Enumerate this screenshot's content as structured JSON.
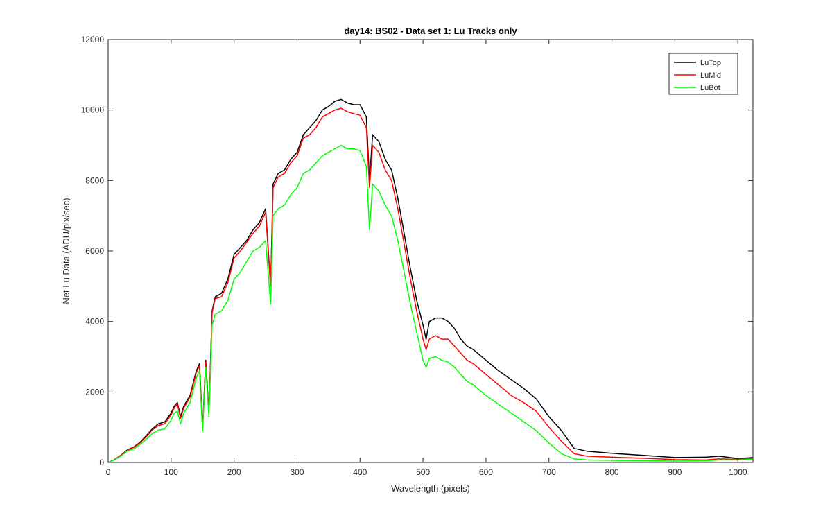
{
  "chart_data": {
    "type": "line",
    "title": "day14: BS02 - Data set 1: Lu Tracks only",
    "xlabel": "Wavelength (pixels)",
    "ylabel": "Net Lu Data (ADU/pix/sec)",
    "xlim": [
      0,
      1024
    ],
    "ylim": [
      0,
      12000
    ],
    "x_ticks": [
      0,
      100,
      200,
      300,
      400,
      500,
      600,
      700,
      800,
      900,
      1000
    ],
    "y_ticks": [
      0,
      2000,
      4000,
      6000,
      8000,
      10000,
      12000
    ],
    "grid": false,
    "legend_position": "top-right",
    "series": [
      {
        "name": "LuTop",
        "color": "#000000",
        "x": [
          0,
          10,
          20,
          30,
          40,
          50,
          60,
          70,
          80,
          90,
          100,
          105,
          110,
          115,
          120,
          130,
          140,
          145,
          150,
          155,
          160,
          165,
          170,
          180,
          190,
          200,
          210,
          220,
          230,
          240,
          250,
          258,
          262,
          270,
          280,
          290,
          300,
          310,
          320,
          330,
          340,
          350,
          360,
          370,
          380,
          390,
          400,
          410,
          415,
          420,
          430,
          440,
          450,
          460,
          470,
          480,
          490,
          500,
          505,
          510,
          520,
          530,
          540,
          550,
          560,
          570,
          580,
          600,
          620,
          640,
          660,
          680,
          700,
          720,
          740,
          760,
          800,
          850,
          900,
          950,
          970,
          1000,
          1024
        ],
        "y": [
          0,
          80,
          200,
          350,
          430,
          560,
          750,
          950,
          1100,
          1150,
          1400,
          1600,
          1700,
          1300,
          1600,
          1900,
          2600,
          2800,
          1000,
          2900,
          1400,
          4300,
          4700,
          4800,
          5200,
          5900,
          6100,
          6300,
          6600,
          6800,
          7200,
          5000,
          7900,
          8200,
          8300,
          8600,
          8800,
          9300,
          9500,
          9700,
          10000,
          10100,
          10250,
          10300,
          10200,
          10150,
          10150,
          9800,
          8000,
          9300,
          9100,
          8600,
          8300,
          7500,
          6500,
          5500,
          4600,
          3900,
          3500,
          4000,
          4100,
          4100,
          4000,
          3800,
          3500,
          3300,
          3200,
          2900,
          2600,
          2350,
          2100,
          1800,
          1300,
          900,
          400,
          320,
          260,
          200,
          140,
          150,
          180,
          110,
          140
        ]
      },
      {
        "name": "LuMid",
        "color": "#ff0000",
        "x": [
          0,
          10,
          20,
          30,
          40,
          50,
          60,
          70,
          80,
          90,
          100,
          105,
          110,
          115,
          120,
          130,
          140,
          145,
          150,
          155,
          160,
          165,
          170,
          180,
          190,
          200,
          210,
          220,
          230,
          240,
          250,
          258,
          262,
          270,
          280,
          290,
          300,
          310,
          320,
          330,
          340,
          350,
          360,
          370,
          380,
          390,
          400,
          410,
          415,
          420,
          430,
          440,
          450,
          460,
          470,
          480,
          490,
          500,
          505,
          510,
          520,
          530,
          540,
          550,
          560,
          570,
          580,
          600,
          620,
          640,
          660,
          680,
          700,
          720,
          740,
          760,
          800,
          850,
          900,
          950,
          970,
          1000,
          1024
        ],
        "y": [
          0,
          80,
          200,
          340,
          420,
          540,
          720,
          920,
          1050,
          1100,
          1350,
          1550,
          1650,
          1250,
          1550,
          1850,
          2550,
          2750,
          950,
          2850,
          1350,
          4250,
          4650,
          4700,
          5100,
          5800,
          6000,
          6250,
          6500,
          6700,
          7100,
          5000,
          7800,
          8100,
          8200,
          8500,
          8700,
          9200,
          9300,
          9500,
          9800,
          9900,
          10000,
          10050,
          9950,
          9900,
          9850,
          9500,
          7800,
          9000,
          8800,
          8300,
          8000,
          7200,
          6200,
          5200,
          4300,
          3500,
          3200,
          3500,
          3600,
          3500,
          3500,
          3300,
          3100,
          2900,
          2800,
          2500,
          2200,
          1900,
          1700,
          1450,
          1000,
          600,
          250,
          180,
          150,
          120,
          80,
          70,
          100,
          90,
          110
        ]
      },
      {
        "name": "LuBot",
        "color": "#00ff00",
        "x": [
          0,
          10,
          20,
          30,
          40,
          50,
          60,
          70,
          80,
          90,
          100,
          105,
          110,
          115,
          120,
          130,
          140,
          145,
          150,
          155,
          160,
          165,
          170,
          180,
          190,
          200,
          210,
          220,
          230,
          240,
          250,
          258,
          262,
          270,
          280,
          290,
          300,
          310,
          320,
          330,
          340,
          350,
          360,
          370,
          380,
          390,
          400,
          410,
          415,
          420,
          430,
          440,
          450,
          460,
          470,
          480,
          490,
          500,
          505,
          510,
          520,
          530,
          540,
          550,
          560,
          570,
          580,
          600,
          620,
          640,
          660,
          680,
          700,
          720,
          740,
          760,
          800,
          850,
          900,
          950,
          970,
          1000,
          1024
        ],
        "y": [
          0,
          70,
          180,
          320,
          380,
          500,
          650,
          820,
          920,
          950,
          1200,
          1400,
          1450,
          1100,
          1400,
          1700,
          2400,
          2600,
          900,
          2700,
          1300,
          3900,
          4200,
          4300,
          4600,
          5200,
          5400,
          5700,
          6000,
          6100,
          6300,
          4500,
          7000,
          7200,
          7300,
          7600,
          7800,
          8200,
          8300,
          8500,
          8700,
          8800,
          8900,
          9000,
          8900,
          8900,
          8850,
          8400,
          6600,
          7900,
          7700,
          7300,
          7000,
          6300,
          5400,
          4500,
          3700,
          2900,
          2700,
          2950,
          3000,
          2900,
          2850,
          2700,
          2500,
          2300,
          2200,
          1900,
          1650,
          1400,
          1150,
          900,
          550,
          250,
          100,
          70,
          60,
          50,
          40,
          50,
          70,
          70,
          90
        ]
      }
    ]
  }
}
